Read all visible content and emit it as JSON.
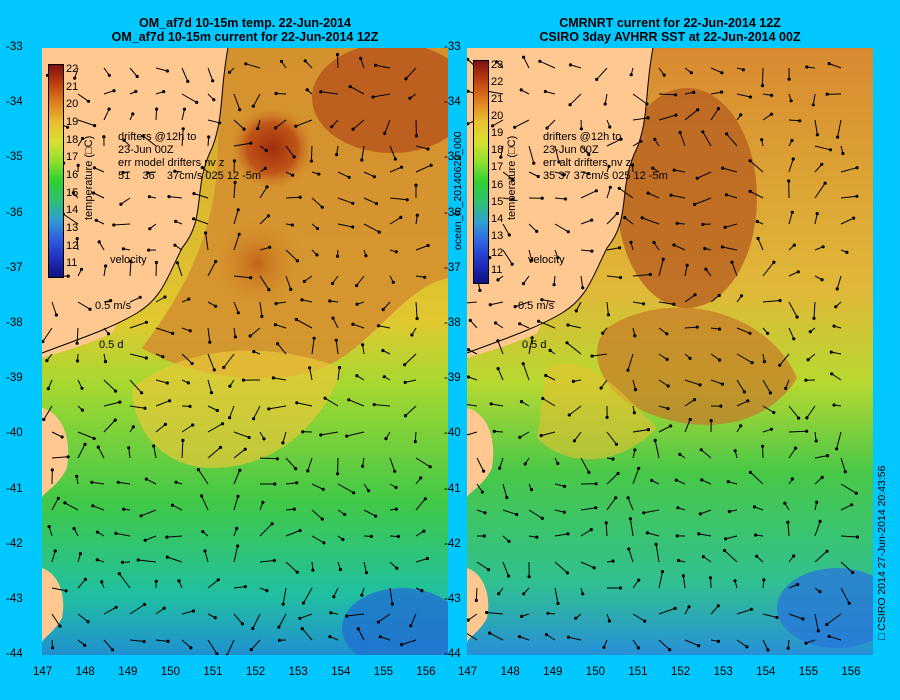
{
  "left": {
    "title1": "OM_af7d 10-15m temp. 22-Jun-2014",
    "title2": "OM_af7d 10-15m current for 22-Jun-2014 12Z",
    "cb_ticks": [
      "22",
      "21",
      "20",
      "19",
      "18",
      "17",
      "16",
      "15",
      "14",
      "13",
      "12",
      "11"
    ],
    "cb_title": "temperature (□C)",
    "drifters": "drifters @12h to\n23-Jun 00Z\nerr model drifters nv z\n51    36    37cm/s 025 12 -5m",
    "velocity": "velocity",
    "scale1": "0.5 m/s",
    "scale2": "0.5 d"
  },
  "right": {
    "title1": "CMRNRT current for 22-Jun-2014 12Z",
    "title2": "CSIRO 3day AVHRR SST at 22-Jun-2014 00Z",
    "cb_ticks": [
      "23",
      "22",
      "21",
      "20",
      "19",
      "18",
      "17",
      "16",
      "15",
      "14",
      "13",
      "12",
      "11"
    ],
    "cb_title": "temperature (□C)",
    "drifters": "drifters @12h to\n23-Jun 00Z\nerr alt drifters nv z\n35 37 37cm/s 025 12 -5m",
    "velocity": "velocity",
    "scale1": "0.5 m/s",
    "scale2": "0.5 d"
  },
  "y_ticks": [
    "-33",
    "-34",
    "-35",
    "-36",
    "-37",
    "-38",
    "-39",
    "-40",
    "-41",
    "-42",
    "-43",
    "-44"
  ],
  "x_ticks": [
    "147",
    "148",
    "149",
    "150",
    "151",
    "152",
    "153",
    "154",
    "155",
    "156"
  ],
  "middle_label": "ocean_fc_20140622_000",
  "credit": "□ CSIRO 2014   27-Jun-2014 20:43:56"
}
